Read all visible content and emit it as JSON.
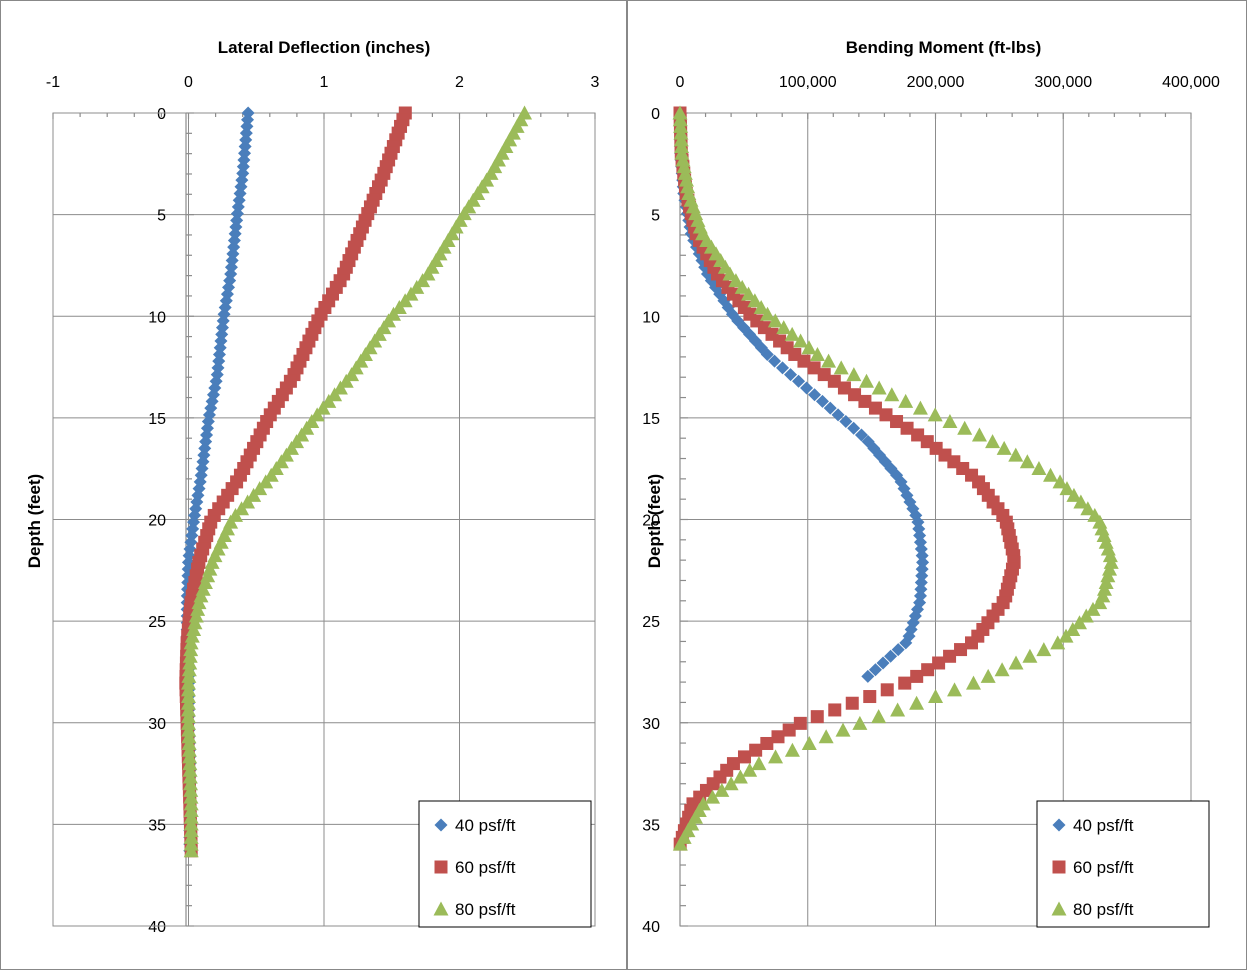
{
  "chart_data": [
    {
      "type": "scatter",
      "title": "Lateral Deflection (inches)",
      "xlabel": "Lateral Deflection (inches)",
      "ylabel": "Depth (feet)",
      "xlim": [
        -1,
        3
      ],
      "ylim": [
        0,
        40
      ],
      "y_inverted": true,
      "x_axis_position": "top",
      "xticks": [
        "-1",
        "0",
        "1",
        "2",
        "3"
      ],
      "yticks": [
        "0",
        "5",
        "10",
        "15",
        "20",
        "25",
        "30",
        "35",
        "40"
      ],
      "grid": true,
      "legend_position": "bottom-right",
      "series": [
        {
          "name": "40 psf/ft",
          "marker": "diamond",
          "color": "#4A7EBB",
          "points": [
            [
              0.44,
              0
            ],
            [
              0.4,
              3
            ],
            [
              0.36,
              5
            ],
            [
              0.31,
              8
            ],
            [
              0.26,
              10
            ],
            [
              0.21,
              13
            ],
            [
              0.15,
              15
            ],
            [
              0.09,
              18
            ],
            [
              0.04,
              20
            ],
            [
              0,
              22
            ],
            [
              -0.01,
              24
            ],
            [
              -0.01,
              26
            ],
            [
              0,
              28
            ],
            [
              0,
              30
            ],
            [
              0.01,
              32
            ],
            [
              0.01,
              34
            ],
            [
              0.01,
              36.3
            ]
          ]
        },
        {
          "name": "60 psf/ft",
          "marker": "square",
          "color": "#C0504D",
          "points": [
            [
              1.6,
              0
            ],
            [
              1.44,
              3
            ],
            [
              1.32,
              5
            ],
            [
              1.14,
              8
            ],
            [
              0.97,
              10
            ],
            [
              0.77,
              13
            ],
            [
              0.59,
              15
            ],
            [
              0.37,
              18
            ],
            [
              0.17,
              20
            ],
            [
              0.08,
              22
            ],
            [
              0.02,
              24
            ],
            [
              -0.01,
              26
            ],
            [
              -0.02,
              28
            ],
            [
              -0.01,
              30
            ],
            [
              0,
              32
            ],
            [
              0.01,
              34
            ],
            [
              0.02,
              36.3
            ]
          ]
        },
        {
          "name": "80 psf/ft",
          "marker": "triangle",
          "color": "#9BBB59",
          "points": [
            [
              2.48,
              0
            ],
            [
              2.23,
              3
            ],
            [
              2.03,
              5
            ],
            [
              1.76,
              8
            ],
            [
              1.5,
              10
            ],
            [
              1.19,
              13
            ],
            [
              0.93,
              15
            ],
            [
              0.59,
              18
            ],
            [
              0.32,
              20
            ],
            [
              0.18,
              22
            ],
            [
              0.08,
              24
            ],
            [
              0.02,
              26
            ],
            [
              0,
              28
            ],
            [
              0,
              30
            ],
            [
              0.01,
              32
            ],
            [
              0.02,
              34
            ],
            [
              0.02,
              36.3
            ]
          ]
        }
      ]
    },
    {
      "type": "scatter",
      "title": "Bending Moment (ft-lbs)",
      "xlabel": "Bending Moment (ft-lbs)",
      "ylabel": "Depth (feet)",
      "xlim": [
        0,
        400000
      ],
      "ylim": [
        0,
        40
      ],
      "y_inverted": true,
      "x_axis_position": "top",
      "xticks": [
        "0",
        "100,000",
        "200,000",
        "300,000",
        "400,000"
      ],
      "yticks": [
        "0",
        "5",
        "10",
        "15",
        "20",
        "25",
        "30",
        "35",
        "40"
      ],
      "grid": true,
      "legend_position": "bottom-right",
      "series": [
        {
          "name": "40 psf/ft",
          "marker": "diamond",
          "color": "#4A7EBB",
          "points": [
            [
              0,
              0
            ],
            [
              500,
              2
            ],
            [
              3000,
              4
            ],
            [
              9000,
              6
            ],
            [
              22000,
              8
            ],
            [
              42000,
              10
            ],
            [
              70000,
              12
            ],
            [
              108000,
              14
            ],
            [
              145000,
              16
            ],
            [
              172000,
              18
            ],
            [
              186000,
              20
            ],
            [
              190000,
              22
            ],
            [
              188000,
              24
            ],
            [
              178000,
              26
            ],
            [
              142000,
              28
            ]
          ]
        },
        {
          "name": "60 psf/ft",
          "marker": "square",
          "color": "#C0504D",
          "points": [
            [
              0,
              0
            ],
            [
              1000,
              2
            ],
            [
              5000,
              4
            ],
            [
              13000,
              6
            ],
            [
              30000,
              8
            ],
            [
              56000,
              10
            ],
            [
              92000,
              12
            ],
            [
              140000,
              14
            ],
            [
              190000,
              16
            ],
            [
              232000,
              18
            ],
            [
              255000,
              20
            ],
            [
              262000,
              22
            ],
            [
              254000,
              24
            ],
            [
              230000,
              26
            ],
            [
              178000,
              28
            ],
            [
              95000,
              30
            ],
            [
              42000,
              32
            ],
            [
              10000,
              34
            ],
            [
              0,
              36
            ]
          ]
        },
        {
          "name": "80 psf/ft",
          "marker": "triangle",
          "color": "#9BBB59",
          "points": [
            [
              0,
              0
            ],
            [
              1500,
              2
            ],
            [
              7000,
              4
            ],
            [
              18000,
              6
            ],
            [
              40000,
              8
            ],
            [
              70000,
              10
            ],
            [
              110000,
              12
            ],
            [
              170000,
              14
            ],
            [
              240000,
              16
            ],
            [
              295000,
              18
            ],
            [
              328000,
              20
            ],
            [
              338000,
              22
            ],
            [
              330000,
              24
            ],
            [
              298000,
              26
            ],
            [
              232000,
              28
            ],
            [
              142000,
              30
            ],
            [
              62000,
              32
            ],
            [
              18000,
              34
            ],
            [
              0,
              36
            ]
          ]
        }
      ]
    }
  ]
}
